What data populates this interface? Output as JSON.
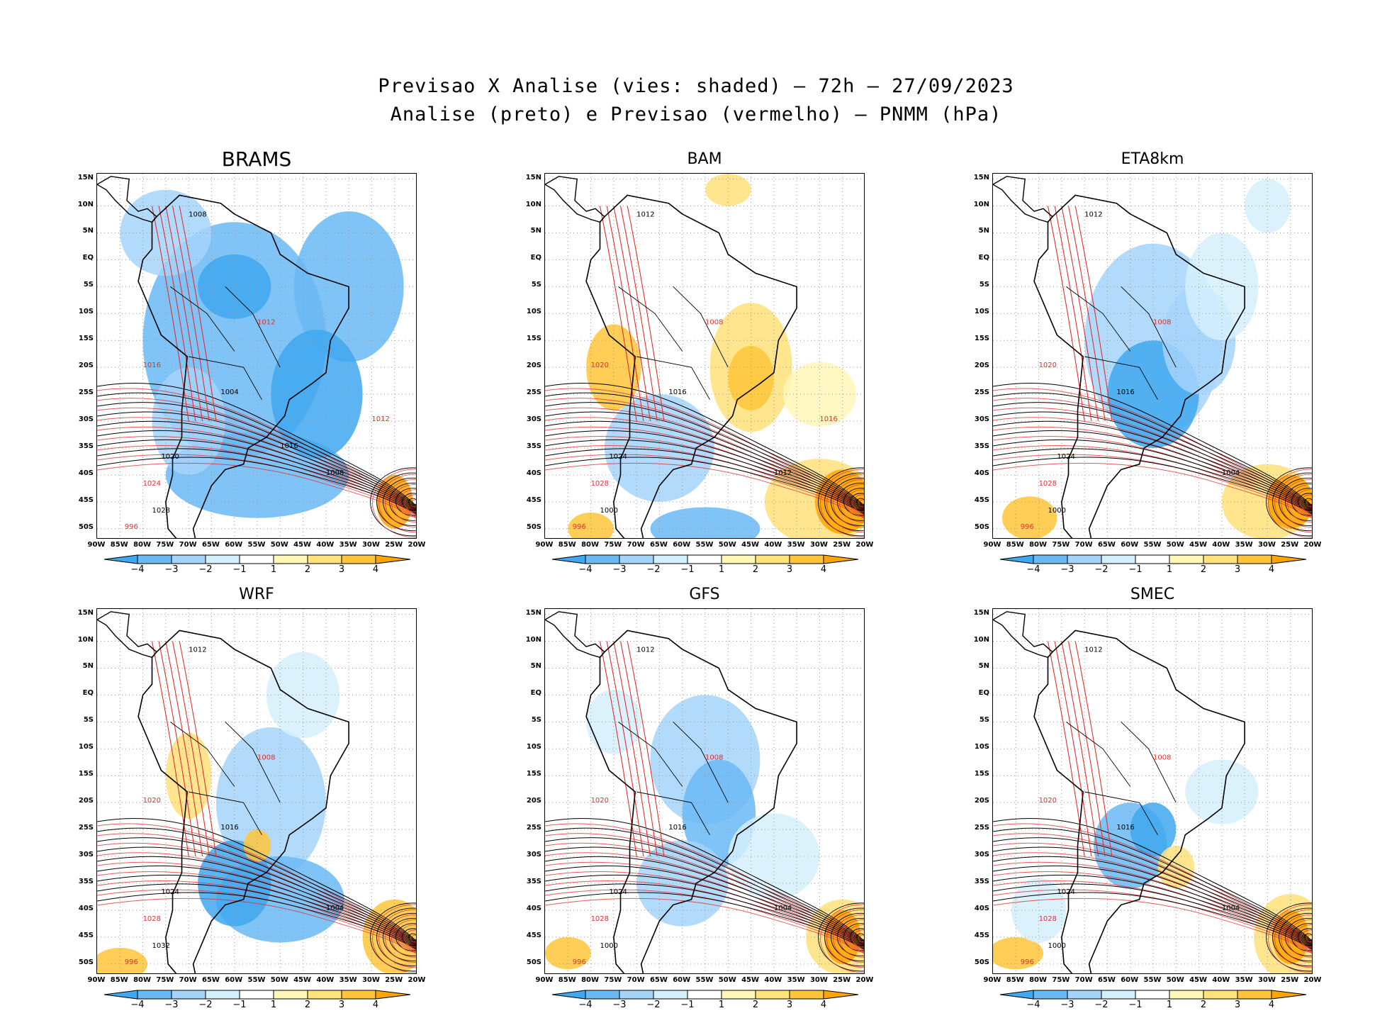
{
  "title_line1": "Previsao X Analise (vies: shaded) – 72h – 27/09/2023",
  "title_line2": "Analise (preto) e Previsao (vermelho) – PNMM (hPa)",
  "panels": [
    {
      "name": "BRAMS"
    },
    {
      "name": "BAM"
    },
    {
      "name": "ETA8km"
    },
    {
      "name": "WRF"
    },
    {
      "name": "GFS"
    },
    {
      "name": "SMEC"
    }
  ],
  "lat_labels": [
    "15N",
    "10N",
    "5N",
    "EQ",
    "5S",
    "10S",
    "15S",
    "20S",
    "25S",
    "30S",
    "35S",
    "40S",
    "45S",
    "50S"
  ],
  "lon_labels": [
    "90W",
    "85W",
    "80W",
    "75W",
    "70W",
    "65W",
    "60W",
    "55W",
    "50W",
    "45W",
    "40W",
    "35W",
    "30W",
    "25W",
    "20W"
  ],
  "colorbar": {
    "labels": [
      "−4",
      "−3",
      "−2",
      "−1",
      "1",
      "2",
      "3",
      "4"
    ],
    "colors": [
      "#3fa8f0",
      "#6ab9f5",
      "#a4d4fa",
      "#d5f0fd",
      "#ffffff",
      "#fff7b8",
      "#ffe27a",
      "#ffc53a",
      "#ffa500"
    ]
  },
  "contour_colors": {
    "analysis": "#000000",
    "forecast": "#e03030"
  },
  "contour_labels": {
    "BRAMS": [
      "1008",
      "1012",
      "1004",
      "1016",
      "1020",
      "1024",
      "1028",
      "996",
      "1008",
      "1012",
      "1016"
    ],
    "BAM": [
      "1012",
      "1008",
      "1016",
      "1020",
      "1024",
      "1028",
      "1000",
      "996",
      "1012",
      "1016"
    ],
    "ETA8km": [
      "1012",
      "1008",
      "1016",
      "1020",
      "1024",
      "1028",
      "1000",
      "996",
      "1004"
    ],
    "WRF": [
      "1012",
      "1008",
      "1016",
      "1020",
      "1024",
      "1028",
      "1032",
      "996",
      "1004"
    ],
    "GFS": [
      "1012",
      "1008",
      "1016",
      "1020",
      "1024",
      "1028",
      "1000",
      "996",
      "1004"
    ],
    "SMEC": [
      "1012",
      "1008",
      "1016",
      "1020",
      "1024",
      "1028",
      "1000",
      "996",
      "1004"
    ]
  }
}
